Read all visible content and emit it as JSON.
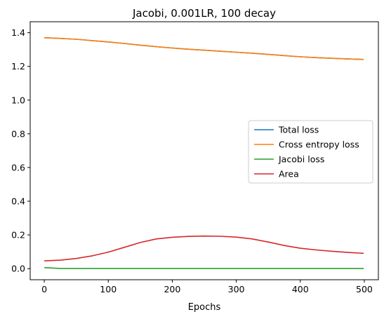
{
  "chart_data": {
    "type": "line",
    "title": "Jacobi, 0.001LR, 100 decay",
    "xlabel": "Epochs",
    "ylabel": "",
    "xlim": [
      -22,
      522
    ],
    "ylim": [
      -0.066,
      1.465
    ],
    "xticks": [
      0,
      100,
      200,
      300,
      400,
      500
    ],
    "yticks": [
      0.0,
      0.2,
      0.4,
      0.6,
      0.8,
      1.0,
      1.2,
      1.4
    ],
    "xtick_labels": [
      "0",
      "100",
      "200",
      "300",
      "400",
      "500"
    ],
    "ytick_labels": [
      "0.0",
      "0.2",
      "0.4",
      "0.6",
      "0.8",
      "1.0",
      "1.2",
      "1.4"
    ],
    "grid": false,
    "legend_position": "center-right",
    "x": [
      0,
      25,
      50,
      75,
      100,
      125,
      150,
      175,
      200,
      225,
      250,
      275,
      300,
      325,
      350,
      375,
      400,
      425,
      450,
      475,
      499
    ],
    "series": [
      {
        "name": "Total loss",
        "color": "#1f77b4",
        "values": [
          1.37,
          1.366,
          1.361,
          1.353,
          1.345,
          1.336,
          1.326,
          1.317,
          1.309,
          1.302,
          1.296,
          1.29,
          1.284,
          1.278,
          1.271,
          1.264,
          1.257,
          1.252,
          1.248,
          1.244,
          1.241
        ]
      },
      {
        "name": "Cross entropy loss",
        "color": "#ff7f0e",
        "values": [
          1.37,
          1.366,
          1.361,
          1.353,
          1.345,
          1.336,
          1.326,
          1.317,
          1.309,
          1.302,
          1.296,
          1.29,
          1.284,
          1.278,
          1.271,
          1.264,
          1.257,
          1.252,
          1.248,
          1.244,
          1.241
        ]
      },
      {
        "name": "Jacobi loss",
        "color": "#2ca02c",
        "values": [
          0.006,
          0.001,
          0.001,
          0.001,
          0.001,
          0.001,
          0.001,
          0.001,
          0.001,
          0.001,
          0.001,
          0.001,
          0.001,
          0.001,
          0.001,
          0.001,
          0.001,
          0.001,
          0.001,
          0.001,
          0.001
        ]
      },
      {
        "name": "Area",
        "color": "#d62728",
        "values": [
          0.046,
          0.05,
          0.06,
          0.076,
          0.098,
          0.126,
          0.155,
          0.176,
          0.186,
          0.191,
          0.193,
          0.192,
          0.187,
          0.176,
          0.158,
          0.137,
          0.121,
          0.111,
          0.103,
          0.096,
          0.091
        ]
      }
    ]
  }
}
